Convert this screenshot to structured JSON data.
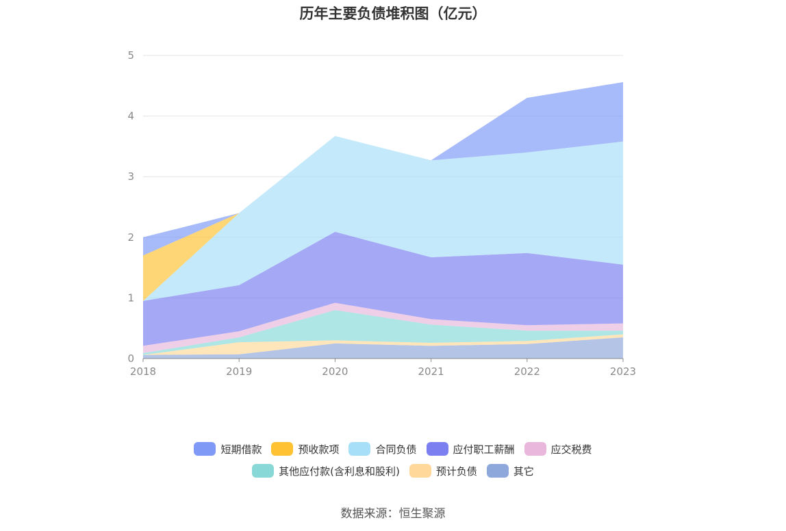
{
  "chart_data": {
    "type": "area",
    "stacked": true,
    "title": "历年主要负债堆积图（亿元）",
    "x": [
      "2018",
      "2019",
      "2020",
      "2021",
      "2022",
      "2023"
    ],
    "ylim": [
      0,
      5
    ],
    "yticks": [
      "0",
      "1",
      "2",
      "3",
      "4",
      "5"
    ],
    "grid": true,
    "legend_position": "bottom",
    "series": [
      {
        "name": "其它",
        "color": "#8FA8DC",
        "values": [
          0.06,
          0.07,
          0.25,
          0.21,
          0.24,
          0.35
        ]
      },
      {
        "name": "预计负债",
        "color": "#FFD89A",
        "values": [
          0.0,
          0.2,
          0.05,
          0.05,
          0.05,
          0.05
        ]
      },
      {
        "name": "其他应付款(含利息和股利)",
        "color": "#88D8D8",
        "values": [
          0.03,
          0.08,
          0.5,
          0.3,
          0.17,
          0.06
        ]
      },
      {
        "name": "应交税费",
        "color": "#E8B7DB",
        "values": [
          0.12,
          0.1,
          0.12,
          0.09,
          0.09,
          0.12
        ]
      },
      {
        "name": "应付职工薪酬",
        "color": "#7B7FF0",
        "values": [
          0.74,
          0.76,
          1.17,
          1.02,
          1.19,
          0.97
        ]
      },
      {
        "name": "合同负债",
        "color": "#A8DFF8",
        "values": [
          0.0,
          1.19,
          1.58,
          1.6,
          1.66,
          2.03
        ]
      },
      {
        "name": "预收款项",
        "color": "#FFC233",
        "values": [
          0.75,
          0.0,
          0.0,
          0.0,
          0.0,
          0.0
        ]
      },
      {
        "name": "短期借款",
        "color": "#7E99F6",
        "values": [
          0.3,
          0.0,
          0.0,
          0.0,
          0.9,
          0.98
        ]
      }
    ]
  },
  "legend_rows": [
    [
      {
        "label": "短期借款",
        "color": "#7E99F6"
      },
      {
        "label": "预收款项",
        "color": "#FFC233"
      },
      {
        "label": "合同负债",
        "color": "#A8DFF8"
      },
      {
        "label": "应付职工薪酬",
        "color": "#7B7FF0"
      },
      {
        "label": "应交税费",
        "color": "#E8B7DB"
      }
    ],
    [
      {
        "label": "其他应付款(含利息和股利)",
        "color": "#88D8D8"
      },
      {
        "label": "预计负债",
        "color": "#FFD89A"
      },
      {
        "label": "其它",
        "color": "#8FA8DC"
      }
    ]
  ],
  "source": "数据来源：恒生聚源"
}
